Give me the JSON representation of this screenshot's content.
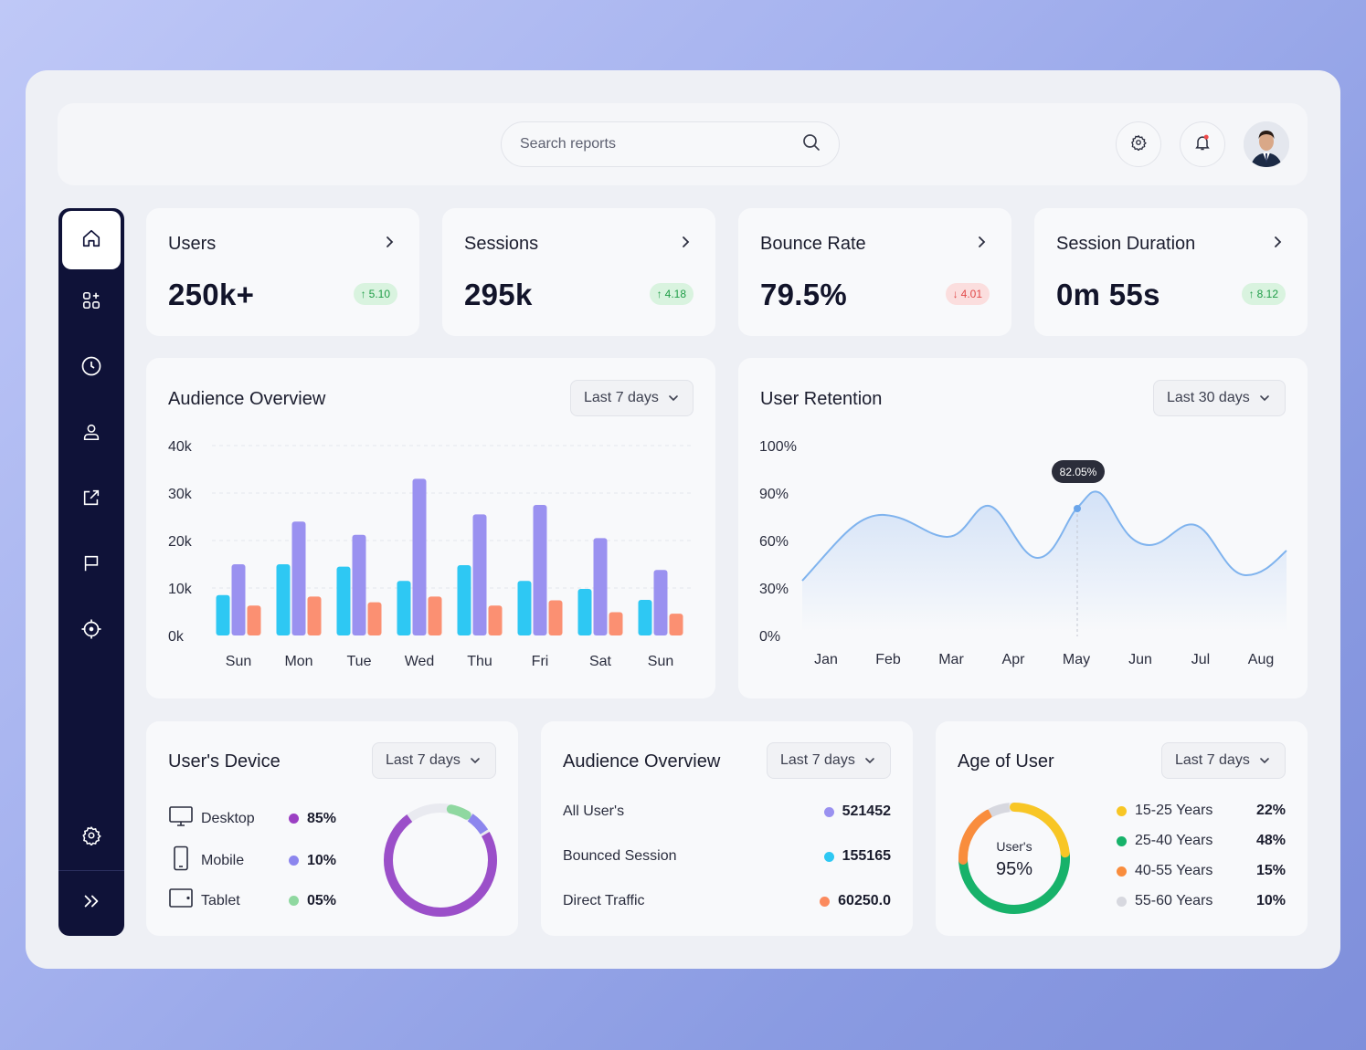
{
  "search": {
    "placeholder": "Search reports",
    "icon": "search-icon"
  },
  "header": {
    "settings_icon": "gear-icon",
    "notifications_icon": "bell-icon",
    "avatar": "user-avatar"
  },
  "sidebar": {
    "items": [
      {
        "icon": "home-icon",
        "active": true
      },
      {
        "icon": "grid-apps-icon"
      },
      {
        "icon": "clock-icon"
      },
      {
        "icon": "user-icon"
      },
      {
        "icon": "external-link-icon"
      },
      {
        "icon": "flag-icon"
      },
      {
        "icon": "crosshair-icon"
      },
      {
        "icon": "gear-icon"
      },
      {
        "icon": "double-chevron-right-icon"
      }
    ]
  },
  "stats": [
    {
      "title": "Users",
      "value": "250k+",
      "change": "5.10",
      "direction": "up"
    },
    {
      "title": "Sessions",
      "value": "295k",
      "change": "4.18",
      "direction": "up"
    },
    {
      "title": "Bounce Rate",
      "value": "79.5%",
      "change": "4.01",
      "direction": "down"
    },
    {
      "title": "Session Duration",
      "value": "0m 55s",
      "change": "8.12",
      "direction": "up"
    }
  ],
  "audience_chart": {
    "title": "Audience Overview",
    "range": "Last 7 days",
    "y_ticks": [
      "40k",
      "30k",
      "20k",
      "10k",
      "0k"
    ]
  },
  "retention_chart": {
    "title": "User Retention",
    "range": "Last 30 days",
    "y_ticks": [
      "100%",
      "90%",
      "60%",
      "30%",
      "0%"
    ],
    "tooltip": "82.05%"
  },
  "colors": {
    "cyan": "#2ec8f3",
    "purple": "#9a91f0",
    "orange": "#fb9072",
    "line": "#7fb3ee"
  },
  "chart_data": [
    {
      "type": "bar",
      "title": "Audience Overview",
      "categories": [
        "Sun",
        "Mon",
        "Tue",
        "Wed",
        "Thu",
        "Fri",
        "Sat",
        "Sun"
      ],
      "ylim": [
        0,
        40000
      ],
      "series": [
        {
          "color": "#2ec8f3",
          "values": [
            8500,
            15000,
            14500,
            11500,
            14800,
            11500,
            9800,
            7500
          ]
        },
        {
          "color": "#9a91f0",
          "values": [
            15000,
            24000,
            21200,
            33000,
            25500,
            27500,
            20500,
            13800
          ]
        },
        {
          "color": "#fb9072",
          "values": [
            6300,
            8200,
            7000,
            8200,
            6300,
            7400,
            4900,
            4600
          ]
        }
      ]
    },
    {
      "type": "area",
      "title": "User Retention",
      "categories": [
        "Jan",
        "Feb",
        "Mar",
        "Apr",
        "May",
        "Jun",
        "Jul",
        "Aug"
      ],
      "y_ticks": [
        "0%",
        "30%",
        "60%",
        "90%",
        "100%"
      ],
      "highlight": {
        "category": "May",
        "label": "82.05%"
      }
    }
  ],
  "device": {
    "title": "User's Device",
    "range": "Last 7 days",
    "items": [
      {
        "label": "Desktop",
        "value": "85%",
        "color": "#9b3fc3",
        "icon": "monitor-icon"
      },
      {
        "label": "Mobile",
        "value": "10%",
        "color": "#8c86ee",
        "icon": "phone-icon"
      },
      {
        "label": "Tablet",
        "value": "05%",
        "color": "#8fd8a0",
        "icon": "tablet-icon"
      }
    ]
  },
  "audience_list": {
    "title": "Audience Overview",
    "range": "Last 7 days",
    "items": [
      {
        "label": "All User's",
        "value": "521452",
        "color": "#9a91f0"
      },
      {
        "label": "Bounced Session",
        "value": "155165",
        "color": "#2ec8f3"
      },
      {
        "label": "Direct Traffic",
        "value": "60250.0",
        "color": "#fb8a5e"
      }
    ]
  },
  "age": {
    "title": "Age of User",
    "range": "Last 7 days",
    "center_label": "User's",
    "center_value": "95%",
    "items": [
      {
        "label": "15-25 Years",
        "value": "22%",
        "color": "#f8c625"
      },
      {
        "label": "25-40 Years",
        "value": "48%",
        "color": "#17b26a"
      },
      {
        "label": "40-55 Years",
        "value": "15%",
        "color": "#f98d3d"
      },
      {
        "label": "55-60 Years",
        "value": "10%",
        "color": "#d7d8df"
      }
    ]
  }
}
